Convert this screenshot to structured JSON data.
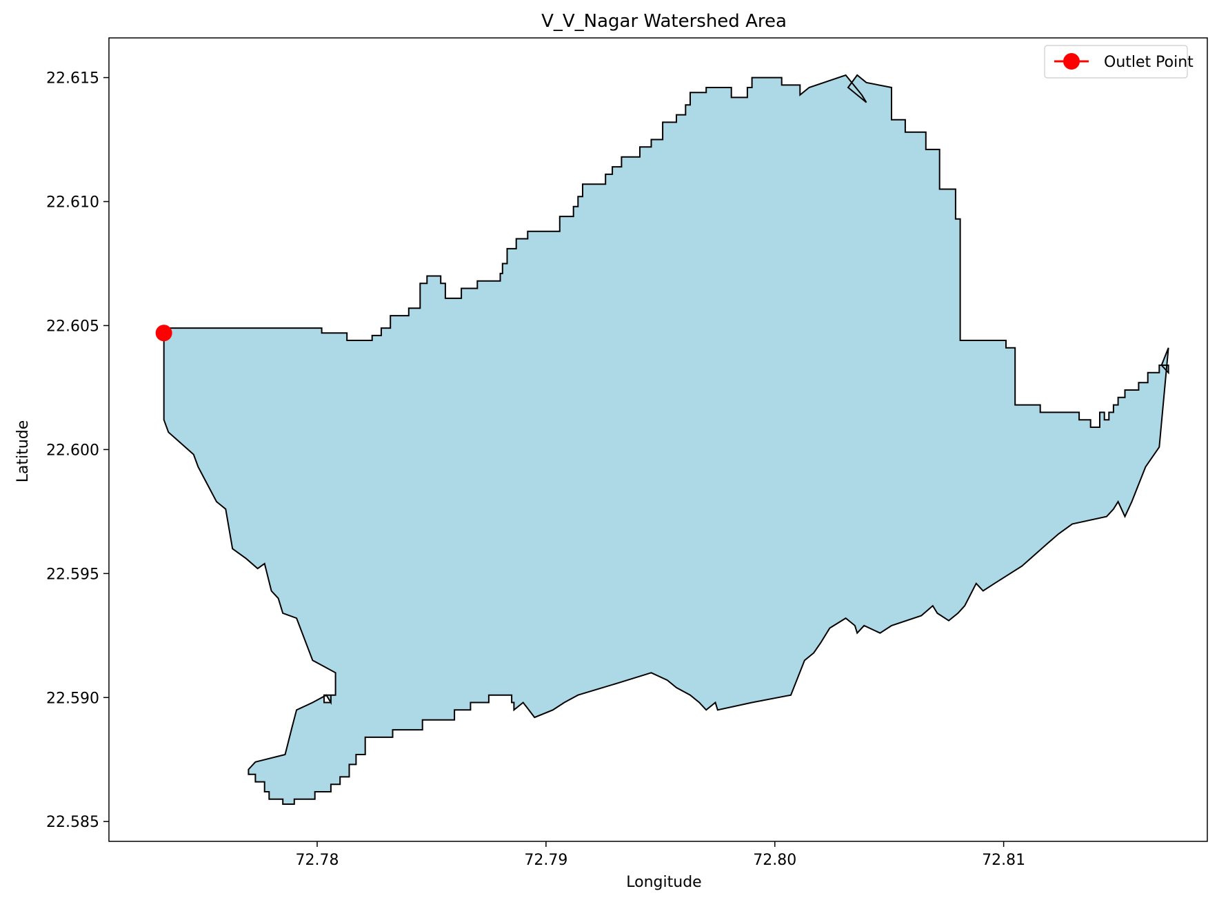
{
  "chart_data": {
    "type": "area",
    "title": "V_V_Nagar Watershed Area",
    "xlabel": "Longitude",
    "ylabel": "Latitude",
    "xlim": [
      72.7709,
      72.8189
    ],
    "ylim": [
      22.5842,
      22.6166
    ],
    "xticks": [
      72.78,
      72.79,
      72.8,
      72.81
    ],
    "xtick_labels": [
      "72.78",
      "72.79",
      "72.80",
      "72.81"
    ],
    "yticks": [
      22.585,
      22.59,
      22.595,
      22.6,
      22.605,
      22.61,
      22.615
    ],
    "ytick_labels": [
      "22.585",
      "22.590",
      "22.595",
      "22.600",
      "22.605",
      "22.610",
      "22.615"
    ],
    "grid": false,
    "legend_position": "top-right",
    "fill_color": "#add8e6",
    "edge_color": "#000000",
    "series": [
      {
        "name": "Outlet Point",
        "color": "#ff0000",
        "marker": "circle",
        "x": [
          72.7733
        ],
        "y": [
          22.6047
        ]
      }
    ],
    "polygon": {
      "lon": [
        72.7733,
        72.7802,
        72.7802,
        72.7813,
        72.7813,
        72.7816,
        72.7816,
        72.7824,
        72.7824,
        72.7828,
        72.7828,
        72.7832,
        72.7832,
        72.784,
        72.784,
        72.7845,
        72.7845,
        72.7848,
        72.7848,
        72.7854,
        72.7854,
        72.7856,
        72.7856,
        72.7863,
        72.7863,
        72.787,
        72.787,
        72.788,
        72.788,
        72.7881,
        72.7881,
        72.7883,
        72.7883,
        72.7887,
        72.7887,
        72.7892,
        72.7892,
        72.7906,
        72.7906,
        72.7912,
        72.7912,
        72.7914,
        72.7914,
        72.7916,
        72.7916,
        72.7926,
        72.7926,
        72.7929,
        72.7929,
        72.7933,
        72.7933,
        72.7941,
        72.7941,
        72.7946,
        72.7946,
        72.7951,
        72.7951,
        72.7957,
        72.7957,
        72.7961,
        72.7961,
        72.7963,
        72.7963,
        72.797,
        72.797,
        72.7981,
        72.7981,
        72.7988,
        72.7988,
        72.799,
        72.799,
        72.8003,
        72.8003,
        72.8011,
        72.8011,
        72.8011,
        72.8015,
        72.8015,
        72.8031,
        72.8031,
        72.8038,
        72.8038,
        72.804,
        72.804,
        72.8032,
        72.8032,
        72.8036,
        72.8036,
        72.804,
        72.804,
        72.8051,
        72.8051,
        72.8051,
        72.8057,
        72.8057,
        72.8066,
        72.8066,
        72.8072,
        72.8072,
        72.8079,
        72.8079,
        72.8081,
        72.8081,
        72.8101,
        72.8101,
        72.8105,
        72.8105,
        72.8116,
        72.8116,
        72.8133,
        72.8133,
        72.8138,
        72.8138,
        72.8142,
        72.8142,
        72.8144,
        72.8144,
        72.8146,
        72.8146,
        72.8148,
        72.8148,
        72.815,
        72.815,
        72.8153,
        72.8153,
        72.8159,
        72.8159,
        72.8163,
        72.8163,
        72.8168,
        72.8168,
        72.8172,
        72.8172,
        72.8172,
        72.8169,
        72.8169,
        72.8172,
        72.8172,
        72.8168,
        72.8168,
        72.8162,
        72.8162,
        72.8156,
        72.8156,
        72.8153,
        72.8153,
        72.815,
        72.815,
        72.8148,
        72.8148,
        72.8145,
        72.8145,
        72.813,
        72.813,
        72.8124,
        72.8124,
        72.8119,
        72.8119,
        72.8108,
        72.8108,
        72.8096,
        72.8096,
        72.8091,
        72.8091,
        72.8088,
        72.8088,
        72.8083,
        72.8083,
        72.808,
        72.808,
        72.8076,
        72.8076,
        72.8071,
        72.8071,
        72.8069,
        72.8069,
        72.8064,
        72.8064,
        72.8051,
        72.8051,
        72.8046,
        72.8046,
        72.8039,
        72.8039,
        72.8036,
        72.8036,
        72.8035,
        72.8035,
        72.8031,
        72.8031,
        72.8024,
        72.8024,
        72.802,
        72.802,
        72.8017,
        72.8017,
        72.8013,
        72.8013,
        72.8007,
        72.8007,
        72.799,
        72.799,
        72.7975,
        72.7975,
        72.7974,
        72.7974,
        72.797,
        72.797,
        72.7967,
        72.7967,
        72.7963,
        72.7963,
        72.7957,
        72.7957,
        72.7953,
        72.7953,
        72.7946,
        72.7946,
        72.7932,
        72.7932,
        72.7914,
        72.7914,
        72.7908,
        72.7908,
        72.7903,
        72.7903,
        72.7895,
        72.7895,
        72.789,
        72.789,
        72.7886,
        72.7886,
        72.7886,
        72.7885,
        72.7885,
        72.7875,
        72.7875,
        72.7867,
        72.7867,
        72.786,
        72.786,
        72.7846,
        72.7846,
        72.7833,
        72.7833,
        72.7821,
        72.7821,
        72.7817,
        72.7817,
        72.7814,
        72.7814,
        72.781,
        72.781,
        72.7806,
        72.7806,
        72.7799,
        72.7799,
        72.779,
        72.779,
        72.7785,
        72.7785,
        72.7779,
        72.7779,
        72.7777,
        72.7777,
        72.7773,
        72.7773,
        72.777,
        72.777,
        72.777,
        72.7773,
        72.7773,
        72.7786,
        72.7786,
        72.7789,
        72.7789,
        72.7791,
        72.7791,
        72.7798,
        72.7798,
        72.7804,
        72.7804,
        72.7806,
        72.7806,
        72.7806,
        72.7803,
        72.7803,
        72.7806,
        72.7806,
        72.7808,
        72.7808,
        72.7808,
        72.7798,
        72.7798,
        72.7791,
        72.7791,
        72.7785,
        72.7785,
        72.7783,
        72.7783,
        72.778,
        72.778,
        72.7777,
        72.7777,
        72.7774,
        72.7774,
        72.7769,
        72.7769,
        72.7763,
        72.7763,
        72.776,
        72.776,
        72.7756,
        72.7756,
        72.7748,
        72.7748,
        72.7746,
        72.7746,
        72.7735,
        72.7735,
        72.7733,
        72.7733,
        72.7733
      ],
      "lat": [
        22.6049,
        22.6049,
        22.6047,
        22.6047,
        22.6044,
        22.6044,
        22.6044,
        22.6044,
        22.6046,
        22.6046,
        22.6049,
        22.6049,
        22.6054,
        22.6054,
        22.6057,
        22.6057,
        22.6067,
        22.6067,
        22.607,
        22.607,
        22.6067,
        22.6067,
        22.6061,
        22.6061,
        22.6065,
        22.6065,
        22.6068,
        22.6068,
        22.6071,
        22.6071,
        22.6075,
        22.6075,
        22.6081,
        22.6081,
        22.6085,
        22.6085,
        22.6088,
        22.6088,
        22.6094,
        22.6094,
        22.6098,
        22.6098,
        22.6102,
        22.6102,
        22.6107,
        22.6107,
        22.6111,
        22.6111,
        22.6114,
        22.6114,
        22.6118,
        22.6118,
        22.6122,
        22.6122,
        22.6125,
        22.6125,
        22.6132,
        22.6132,
        22.6135,
        22.6135,
        22.6139,
        22.6139,
        22.6144,
        22.6144,
        22.6146,
        22.6146,
        22.6142,
        22.6142,
        22.6146,
        22.6146,
        22.615,
        22.615,
        22.6147,
        22.6147,
        22.6143,
        22.6143,
        22.6146,
        22.6146,
        22.6151,
        22.6151,
        22.6143,
        22.6143,
        22.614,
        22.614,
        22.6146,
        22.6146,
        22.6151,
        22.6151,
        22.6148,
        22.6148,
        22.6146,
        22.6146,
        22.6133,
        22.6133,
        22.6128,
        22.6128,
        22.6121,
        22.6121,
        22.6105,
        22.6105,
        22.6093,
        22.6093,
        22.6044,
        22.6044,
        22.6041,
        22.6041,
        22.6018,
        22.6018,
        22.6015,
        22.6015,
        22.6012,
        22.6012,
        22.6009,
        22.6009,
        22.6015,
        22.6015,
        22.6012,
        22.6012,
        22.6015,
        22.6015,
        22.6018,
        22.6018,
        22.6021,
        22.6021,
        22.6024,
        22.6024,
        22.6027,
        22.6027,
        22.6031,
        22.6031,
        22.6034,
        22.6034,
        22.6031,
        22.6031,
        22.6034,
        22.6034,
        22.6041,
        22.6041,
        22.6001,
        22.6001,
        22.5993,
        22.5993,
        22.5979,
        22.5979,
        22.5973,
        22.5973,
        22.5979,
        22.5979,
        22.5976,
        22.5976,
        22.5973,
        22.5973,
        22.597,
        22.597,
        22.5966,
        22.5966,
        22.5962,
        22.5962,
        22.5953,
        22.5953,
        22.5946,
        22.5946,
        22.5943,
        22.5943,
        22.5946,
        22.5946,
        22.5937,
        22.5937,
        22.5934,
        22.5934,
        22.5931,
        22.5931,
        22.5934,
        22.5934,
        22.5937,
        22.5937,
        22.5933,
        22.5933,
        22.5929,
        22.5929,
        22.5926,
        22.5926,
        22.5929,
        22.5929,
        22.5926,
        22.5926,
        22.5929,
        22.5929,
        22.5932,
        22.5932,
        22.5928,
        22.5928,
        22.5922,
        22.5922,
        22.5918,
        22.5918,
        22.5915,
        22.5915,
        22.5901,
        22.5901,
        22.5898,
        22.5898,
        22.5895,
        22.5895,
        22.5898,
        22.5898,
        22.5895,
        22.5895,
        22.5898,
        22.5898,
        22.5901,
        22.5901,
        22.5904,
        22.5904,
        22.5907,
        22.5907,
        22.591,
        22.591,
        22.5906,
        22.5906,
        22.5901,
        22.5901,
        22.5898,
        22.5898,
        22.5895,
        22.5895,
        22.5892,
        22.5892,
        22.5898,
        22.5898,
        22.5895,
        22.5895,
        22.5898,
        22.5898,
        22.5901,
        22.5901,
        22.5898,
        22.5898,
        22.5895,
        22.5895,
        22.5891,
        22.5891,
        22.5887,
        22.5887,
        22.5884,
        22.5884,
        22.5877,
        22.5877,
        22.5873,
        22.5873,
        22.5868,
        22.5868,
        22.5865,
        22.5865,
        22.5862,
        22.5862,
        22.5859,
        22.5859,
        22.5857,
        22.5857,
        22.5859,
        22.5859,
        22.5862,
        22.5862,
        22.5866,
        22.5866,
        22.5869,
        22.5869,
        22.5871,
        22.5871,
        22.5874,
        22.5874,
        22.5877,
        22.5877,
        22.5888,
        22.5888,
        22.5895,
        22.5895,
        22.5898,
        22.5898,
        22.5901,
        22.5901,
        22.5898,
        22.5898,
        22.5901,
        22.5901,
        22.5898,
        22.5898,
        22.5901,
        22.5901,
        22.591,
        22.591,
        22.5915,
        22.5915,
        22.5932,
        22.5932,
        22.5934,
        22.5934,
        22.594,
        22.594,
        22.5943,
        22.5943,
        22.5954,
        22.5954,
        22.5952,
        22.5952,
        22.5956,
        22.5956,
        22.596,
        22.596,
        22.5976,
        22.5976,
        22.5979,
        22.5979,
        22.5993,
        22.5993,
        22.5998,
        22.5998,
        22.6007,
        22.6007,
        22.6012,
        22.6012,
        22.6015,
        22.6015,
        22.6018,
        22.6018,
        22.6022,
        22.6022,
        22.6026,
        22.6026,
        22.6029,
        22.6029,
        22.6033,
        22.6033,
        22.604,
        22.604,
        22.6043,
        22.6043,
        22.6049
      ]
    }
  }
}
